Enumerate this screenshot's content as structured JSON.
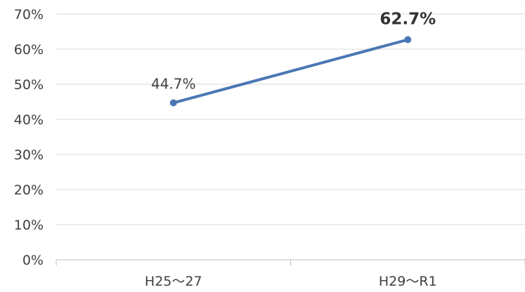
{
  "chart_data": {
    "type": "line",
    "categories": [
      "H25〜27",
      "H29〜R1"
    ],
    "series": [
      {
        "values": [
          44.7,
          62.7
        ],
        "data_labels": [
          "44.7%",
          "62.7%"
        ],
        "color": "#4a77b4"
      }
    ],
    "title": "",
    "xlabel": "",
    "ylabel": "",
    "ylim": [
      0,
      70
    ],
    "yticks": [
      0,
      10,
      20,
      30,
      40,
      50,
      60,
      70
    ],
    "ytick_labels": [
      "0%",
      "10%",
      "20%",
      "30%",
      "40%",
      "50%",
      "60%",
      "70%"
    ],
    "grid": true,
    "legend": "none",
    "gridline_color": "#d9d9d9",
    "axis_color": "#bfbfbf"
  }
}
